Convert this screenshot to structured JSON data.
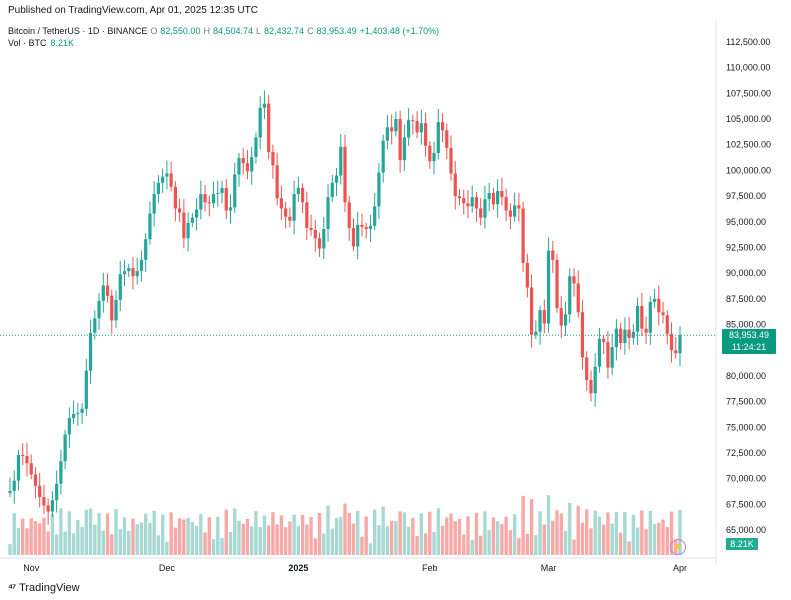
{
  "header": {
    "published": "Published on TradingView.com, Apr 01, 2025 12:35 UTC",
    "symbol": "Bitcoin / TetherUS · 1D · BINANCE",
    "o_label": "O",
    "o_value": "82,550.00",
    "h_label": "H",
    "h_value": "84,504.74",
    "l_label": "L",
    "l_value": "82,432.74",
    "c_label": "C",
    "c_value": "83,953.49",
    "change": "+1,403.48 (+1.70%)",
    "vol_label": "Vol · BTC",
    "vol_value": "8.21K"
  },
  "price_tag": {
    "price": "83,953.49",
    "countdown": "11:24:21"
  },
  "volume_tag": "8.21K",
  "logo_text": "TradingView",
  "colors": {
    "up": "#26a69a",
    "down": "#ef5350",
    "vol_up": "#a7d8d2",
    "vol_down": "#f7a9a7",
    "last": "#089981"
  },
  "chart_data": {
    "type": "candlestick",
    "y_ticks": [
      "112,500.00",
      "110,000.00",
      "107,500.00",
      "105,000.00",
      "102,500.00",
      "100,000.00",
      "97,500.00",
      "95,000.00",
      "92,500.00",
      "90,000.00",
      "87,500.00",
      "85,000.00",
      "82,500.00",
      "80,000.00",
      "77,500.00",
      "75,000.00",
      "72,500.00",
      "70,000.00",
      "67,500.00",
      "65,000.00"
    ],
    "y_tick_values": [
      112500,
      110000,
      107500,
      105000,
      102500,
      100000,
      97500,
      95000,
      92500,
      90000,
      87500,
      85000,
      82500,
      80000,
      77500,
      75000,
      72500,
      70000,
      67500,
      65000
    ],
    "x_labels": [
      "Nov",
      "Dec",
      "2025",
      "Feb",
      "Mar",
      "Apr"
    ],
    "x_label_index": [
      5,
      37,
      68,
      99,
      127,
      158
    ],
    "last_price": 83953.49,
    "ylim": [
      64000,
      113500
    ],
    "closes": [
      68800,
      69800,
      72300,
      72200,
      71500,
      70400,
      69300,
      68200,
      67400,
      66800,
      67900,
      69500,
      71700,
      74300,
      75900,
      76300,
      76400,
      76800,
      80500,
      84200,
      85600,
      87300,
      88800,
      87800,
      85400,
      87400,
      89900,
      90200,
      90500,
      89700,
      90200,
      91300,
      93300,
      95800,
      97700,
      98800,
      99400,
      99700,
      98400,
      96300,
      95900,
      93400,
      94900,
      95400,
      96200,
      97700,
      96900,
      96800,
      97700,
      97800,
      98300,
      96100,
      96400,
      99600,
      101200,
      100700,
      99900,
      101300,
      103200,
      106100,
      106500,
      101800,
      100500,
      97300,
      96300,
      95500,
      95100,
      97700,
      98300,
      96900,
      94400,
      94200,
      93400,
      92400,
      94300,
      97400,
      98800,
      99500,
      102300,
      96900,
      94400,
      92600,
      94700,
      94500,
      94300,
      94600,
      96500,
      99800,
      102900,
      104200,
      103800,
      105000,
      101000,
      103200,
      104900,
      104800,
      103700,
      104600,
      102400,
      100900,
      101700,
      104700,
      103900,
      102200,
      99700,
      97500,
      97300,
      96800,
      96500,
      97400,
      96300,
      95400,
      97200,
      97800,
      96700,
      98000,
      97400,
      96100,
      95500,
      96600,
      96300,
      91000,
      88600,
      84000,
      84300,
      86400,
      85100,
      92200,
      91300,
      86600,
      84900,
      86000,
      89700,
      89000,
      86200,
      81800,
      79600,
      78300,
      80900,
      83600,
      83300,
      80800,
      82800,
      84600,
      83200,
      84500,
      83700,
      84300,
      86800,
      84600,
      84200,
      87200,
      87500,
      86200,
      85900,
      84100,
      82500,
      82200,
      83950
    ],
    "vol_ranges": [
      [
        0,
        52
      ],
      [
        53,
        122
      ],
      [
        123,
        163
      ]
    ]
  }
}
